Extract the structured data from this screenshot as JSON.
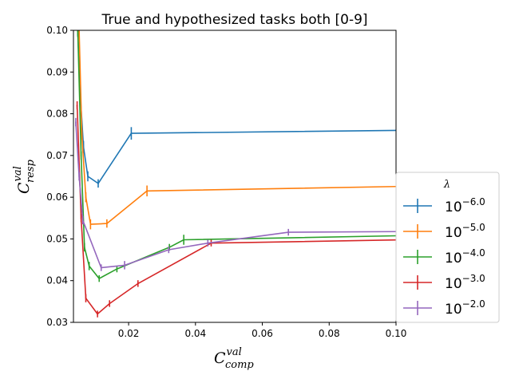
{
  "chart_data": {
    "type": "line",
    "title": "True and hypothesized tasks both [0-9]",
    "xlabel": {
      "base": "C",
      "sup": "val",
      "sub": "comp"
    },
    "ylabel": {
      "base": "C",
      "sup": "val",
      "sub": "resp"
    },
    "xlim": [
      0.0035,
      0.1
    ],
    "ylim": [
      0.03,
      0.1
    ],
    "xticks": [
      0.02,
      0.04,
      0.06,
      0.08,
      0.1
    ],
    "xtick_labels": [
      "0.02",
      "0.04",
      "0.06",
      "0.08",
      "0.10"
    ],
    "yticks": [
      0.03,
      0.04,
      0.05,
      0.06,
      0.07,
      0.08,
      0.09,
      0.1
    ],
    "ytick_labels": [
      "0.03",
      "0.04",
      "0.05",
      "0.06",
      "0.07",
      "0.08",
      "0.09",
      "0.10"
    ],
    "legend": {
      "title": "λ",
      "placement": "center-right",
      "entries": [
        {
          "base": "10",
          "exp": "−6.0"
        },
        {
          "base": "10",
          "exp": "−5.0"
        },
        {
          "base": "10",
          "exp": "−4.0"
        },
        {
          "base": "10",
          "exp": "−3.0"
        },
        {
          "base": "10",
          "exp": "−2.0"
        }
      ]
    },
    "series": [
      {
        "name": "10^-6.0",
        "color": "#1f77b4",
        "x": [
          0.0048,
          0.0055,
          0.0065,
          0.0078,
          0.0109,
          0.0208,
          0.11
        ],
        "y": [
          0.1,
          0.085,
          0.072,
          0.065,
          0.0633,
          0.0753,
          0.0761
        ],
        "yerr": [
          0.0015,
          0.0015,
          0.0015,
          0.0012,
          0.001,
          0.0015,
          0.0005
        ]
      },
      {
        "name": "10^-5.0",
        "color": "#ff7f0e",
        "x": [
          0.0052,
          0.006,
          0.0072,
          0.0086,
          0.0135,
          0.0255,
          0.11
        ],
        "y": [
          0.1,
          0.075,
          0.06,
          0.0535,
          0.0537,
          0.0615,
          0.0627
        ],
        "yerr": [
          0.0012,
          0.0012,
          0.0012,
          0.0012,
          0.001,
          0.0013,
          0.0005
        ]
      },
      {
        "name": "10^-4.0",
        "color": "#2ca02c",
        "x": [
          0.0048,
          0.0058,
          0.0068,
          0.0082,
          0.0112,
          0.0165,
          0.0322,
          0.0365,
          0.11
        ],
        "y": [
          0.1,
          0.07,
          0.048,
          0.0435,
          0.0405,
          0.0428,
          0.048,
          0.0498,
          0.0509
        ],
        "yerr": [
          0.0012,
          0.001,
          0.001,
          0.001,
          0.0008,
          0.0008,
          0.0008,
          0.0012,
          0.0005
        ]
      },
      {
        "name": "10^-3.0",
        "color": "#d62728",
        "x": [
          0.0046,
          0.0058,
          0.0072,
          0.0107,
          0.0143,
          0.0228,
          0.0447,
          0.11
        ],
        "y": [
          0.082,
          0.055,
          0.0358,
          0.032,
          0.0345,
          0.0393,
          0.049,
          0.0499
        ],
        "yerr": [
          0.001,
          0.001,
          0.001,
          0.0008,
          0.0008,
          0.0008,
          0.0008,
          0.0005
        ]
      },
      {
        "name": "10^-2.0",
        "color": "#9467bd",
        "x": [
          0.0042,
          0.0052,
          0.0063,
          0.0118,
          0.0188,
          0.032,
          0.0437,
          0.0678,
          0.11
        ],
        "y": [
          0.078,
          0.065,
          0.0545,
          0.0431,
          0.0437,
          0.0474,
          0.049,
          0.0516,
          0.0518
        ],
        "yerr": [
          0.001,
          0.001,
          0.001,
          0.0008,
          0.001,
          0.0008,
          0.0008,
          0.0008,
          0.0005
        ]
      }
    ]
  }
}
